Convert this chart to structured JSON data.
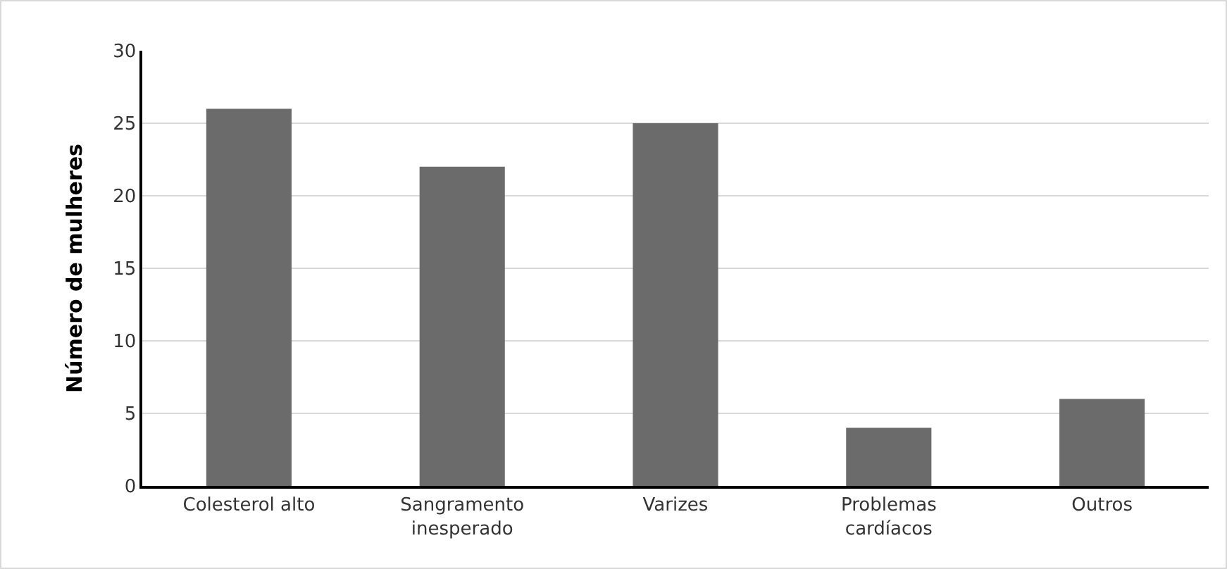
{
  "chart_data": {
    "type": "bar",
    "ylabel": "Número de mulheres",
    "categories": [
      "Colesterol alto",
      "Sangramento\ninesperado",
      "Varizes",
      "Problemas\ncardíacos",
      "Outros"
    ],
    "values": [
      26,
      22,
      25,
      4,
      6
    ],
    "color": "#6b6b6b",
    "ylim": [
      0,
      30
    ],
    "yticks": [
      0,
      5,
      10,
      15,
      20,
      25,
      30
    ],
    "grid": "y"
  }
}
